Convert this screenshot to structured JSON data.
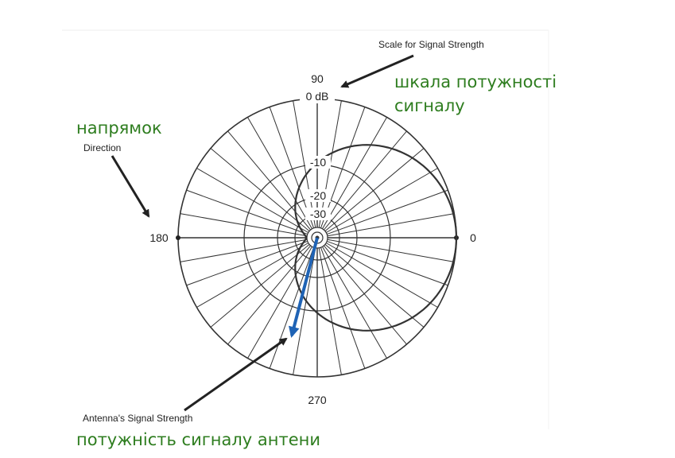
{
  "colors": {
    "ink": "#222222",
    "grid": "#333333",
    "translation": "#2e7d1f",
    "signal_arrow": "#1f63b5"
  },
  "labels": {
    "scale_en": "Scale for Signal Strength",
    "scale_uk_line1": "шкала потужності",
    "scale_uk_line2": "сигналу",
    "direction_en": "Direction",
    "direction_uk": "напрямок",
    "antenna_en": "Antenna's Signal Strength",
    "antenna_uk": "потужність сигналу антени"
  },
  "angles": {
    "deg_90": "90",
    "deg_180": "180",
    "deg_0": "0",
    "deg_270": "270"
  },
  "scale": {
    "db_0": "0 dB",
    "db_10": "-10",
    "db_20": "-20",
    "db_30": "-30"
  }
}
